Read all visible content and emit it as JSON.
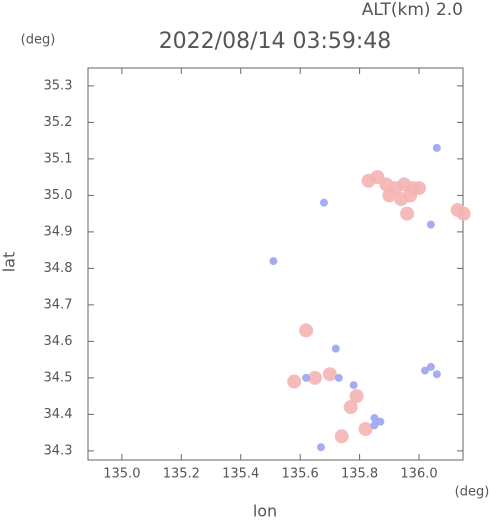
{
  "chart_data": {
    "type": "scatter",
    "title": "2022/08/14 03:59:48",
    "subtitle": "ALT(km) 2.0",
    "x_label": "lon",
    "y_label": "lat",
    "x_unit": "(deg)",
    "y_unit": "(deg)",
    "xlim": [
      134.886,
      136.148
    ],
    "ylim": [
      34.275,
      35.349
    ],
    "xticks": [
      {
        "value": 135,
        "label": "135.0"
      },
      135.2,
      135.4,
      135.6,
      135.8,
      {
        "value": 136,
        "label": "136.0"
      }
    ],
    "yticks": [
      34.3,
      34.4,
      34.5,
      34.6,
      34.7,
      34.8,
      34.9,
      {
        "value": 35,
        "label": "35.0"
      },
      35.1,
      35.2,
      35.3
    ],
    "series": [
      {
        "color": "#f4b4b4",
        "x": [
          135.83,
          135.86,
          135.89,
          135.92,
          135.95,
          135.98,
          135.9,
          135.94,
          135.97,
          136.0,
          135.96,
          136.13,
          136.15,
          135.79,
          135.77,
          135.82,
          135.74,
          135.62,
          135.65,
          135.7,
          135.58
        ],
        "y": [
          35.04,
          35.05,
          35.03,
          35.02,
          35.03,
          35.02,
          35.0,
          34.99,
          35.0,
          35.02,
          34.95,
          34.96,
          34.95,
          34.45,
          34.42,
          34.36,
          34.34,
          34.63,
          34.5,
          34.51,
          34.49
        ]
      },
      {
        "color": "#9aa4ee",
        "x": [
          135.68,
          136.06,
          135.51,
          135.87,
          135.85,
          135.78,
          135.67,
          136.02,
          136.06,
          136.04,
          135.62,
          135.73,
          135.72,
          135.85,
          136.04
        ],
        "y": [
          34.98,
          35.13,
          34.82,
          34.38,
          34.37,
          34.48,
          34.31,
          34.52,
          34.51,
          34.53,
          34.5,
          34.5,
          34.58,
          34.39,
          34.92
        ]
      }
    ]
  }
}
